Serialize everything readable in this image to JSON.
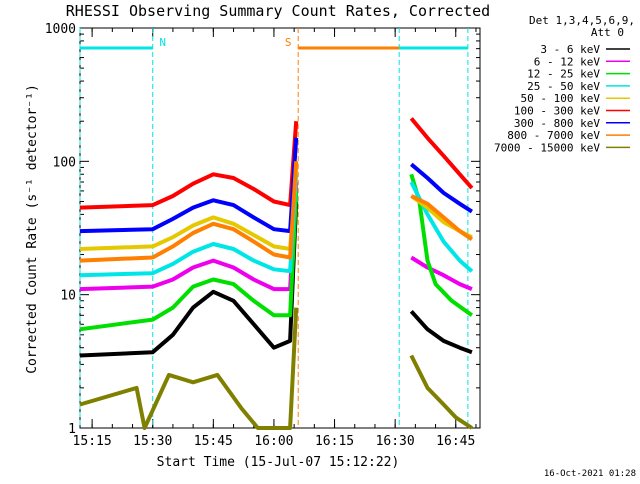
{
  "chart_data": {
    "type": "line",
    "title": "RHESSI Observing Summary Count Rates, Corrected",
    "xlabel": "Start Time (15-Jul-07 15:12:22)",
    "ylabel": "Corrected Count Rate (s⁻¹ detector⁻¹)",
    "yscale": "log",
    "ylim": [
      1,
      1000
    ],
    "xlim": [
      "15:12",
      "16:51"
    ],
    "x_ticks": [
      "15:15",
      "15:30",
      "15:45",
      "16:00",
      "16:15",
      "16:30",
      "16:45"
    ],
    "y_ticks": [
      "1",
      "10",
      "100",
      "1000"
    ],
    "footer": "16-Oct-2021 01:28",
    "legend_header": [
      "Det 1,3,4,5,6,9,",
      "Att 0"
    ],
    "legend_position": "right",
    "state_markers": [
      {
        "label": "N",
        "color": "#00e5e5",
        "bars": [
          [
            "15:12",
            "15:30"
          ],
          [
            "16:31",
            "16:48"
          ]
        ]
      },
      {
        "label": "S",
        "color": "#ff7f00",
        "bars": [
          [
            "16:06",
            "16:31"
          ]
        ]
      }
    ],
    "vertical_lines": [
      {
        "color": "#00e5e5",
        "times": [
          "15:12",
          "15:30",
          "16:31",
          "16:48"
        ]
      },
      {
        "color": "#ff7f00",
        "times": [
          "16:06"
        ]
      }
    ],
    "series": [
      {
        "name": "3 - 6 keV",
        "color": "#000000",
        "points": [
          [
            "15:12",
            3.5
          ],
          [
            "15:30",
            3.7
          ],
          [
            "15:35",
            5
          ],
          [
            "15:40",
            8
          ],
          [
            "15:45",
            10.5
          ],
          [
            "15:50",
            9
          ],
          [
            "15:55",
            6
          ],
          [
            "16:00",
            4
          ],
          [
            "16:04",
            4.5
          ],
          [
            "16:05.5",
            50
          ],
          [
            null,
            null
          ],
          [
            "16:34",
            7.5
          ],
          [
            "16:38",
            5.5
          ],
          [
            "16:42",
            4.5
          ],
          [
            "16:46",
            4
          ],
          [
            "16:49",
            3.7
          ]
        ]
      },
      {
        "name": "6 - 12 keV",
        "color": "#ee00ee",
        "points": [
          [
            "15:12",
            11
          ],
          [
            "15:30",
            11.5
          ],
          [
            "15:35",
            13
          ],
          [
            "15:40",
            16
          ],
          [
            "15:45",
            18
          ],
          [
            "15:50",
            16
          ],
          [
            "15:55",
            13
          ],
          [
            "16:00",
            11
          ],
          [
            "16:04",
            11
          ],
          [
            "16:05.5",
            70
          ],
          [
            null,
            null
          ],
          [
            "16:34",
            19
          ],
          [
            "16:38",
            16
          ],
          [
            "16:42",
            14
          ],
          [
            "16:46",
            12
          ],
          [
            "16:49",
            11
          ]
        ]
      },
      {
        "name": "12 - 25 keV",
        "color": "#00e000",
        "points": [
          [
            "15:12",
            5.5
          ],
          [
            "15:30",
            6.5
          ],
          [
            "15:35",
            8
          ],
          [
            "15:40",
            11.5
          ],
          [
            "15:45",
            13
          ],
          [
            "15:50",
            12
          ],
          [
            "15:55",
            9
          ],
          [
            "16:00",
            7
          ],
          [
            "16:04",
            7
          ],
          [
            "16:05.5",
            60
          ],
          [
            null,
            null
          ],
          [
            "16:34",
            80
          ],
          [
            "16:36",
            50
          ],
          [
            "16:38",
            18
          ],
          [
            "16:40",
            12
          ],
          [
            "16:44",
            9
          ],
          [
            "16:49",
            7
          ]
        ]
      },
      {
        "name": "25 - 50 keV",
        "color": "#00e5e5",
        "points": [
          [
            "15:12",
            14
          ],
          [
            "15:30",
            14.5
          ],
          [
            "15:35",
            17
          ],
          [
            "15:40",
            21
          ],
          [
            "15:45",
            24
          ],
          [
            "15:50",
            22
          ],
          [
            "15:55",
            18
          ],
          [
            "16:00",
            15.5
          ],
          [
            "16:04",
            15
          ],
          [
            "16:05.5",
            80
          ],
          [
            null,
            null
          ],
          [
            "16:34",
            70
          ],
          [
            "16:38",
            40
          ],
          [
            "16:42",
            25
          ],
          [
            "16:46",
            18
          ],
          [
            "16:49",
            15
          ]
        ]
      },
      {
        "name": "50 - 100 keV",
        "color": "#e5c800",
        "points": [
          [
            "15:12",
            22
          ],
          [
            "15:30",
            23
          ],
          [
            "15:35",
            27
          ],
          [
            "15:40",
            33
          ],
          [
            "15:45",
            38
          ],
          [
            "15:50",
            34
          ],
          [
            "15:55",
            28
          ],
          [
            "16:00",
            23
          ],
          [
            "16:04",
            22
          ],
          [
            "16:05.5",
            90
          ],
          [
            null,
            null
          ],
          [
            "16:34",
            55
          ],
          [
            "16:38",
            45
          ],
          [
            "16:42",
            35
          ],
          [
            "16:46",
            30
          ],
          [
            "16:49",
            27
          ]
        ]
      },
      {
        "name": "100 - 300 keV",
        "color": "#ff0000",
        "points": [
          [
            "15:12",
            45
          ],
          [
            "15:30",
            47
          ],
          [
            "15:35",
            55
          ],
          [
            "15:40",
            68
          ],
          [
            "15:45",
            80
          ],
          [
            "15:50",
            75
          ],
          [
            "15:55",
            62
          ],
          [
            "16:00",
            50
          ],
          [
            "16:04",
            47
          ],
          [
            "16:05.5",
            200
          ],
          [
            null,
            null
          ],
          [
            "16:34",
            210
          ],
          [
            "16:38",
            150
          ],
          [
            "16:42",
            110
          ],
          [
            "16:46",
            80
          ],
          [
            "16:49",
            63
          ]
        ]
      },
      {
        "name": "300 - 800 keV",
        "color": "#0000ff",
        "points": [
          [
            "15:12",
            30
          ],
          [
            "15:30",
            31
          ],
          [
            "15:35",
            37
          ],
          [
            "15:40",
            45
          ],
          [
            "15:45",
            51
          ],
          [
            "15:50",
            47
          ],
          [
            "15:55",
            38
          ],
          [
            "16:00",
            31
          ],
          [
            "16:04",
            30
          ],
          [
            "16:05.5",
            150
          ],
          [
            null,
            null
          ],
          [
            "16:34",
            95
          ],
          [
            "16:38",
            75
          ],
          [
            "16:42",
            58
          ],
          [
            "16:46",
            48
          ],
          [
            "16:49",
            42
          ]
        ]
      },
      {
        "name": "800 - 7000 keV",
        "color": "#ff7f00",
        "points": [
          [
            "15:12",
            18
          ],
          [
            "15:30",
            19
          ],
          [
            "15:35",
            23
          ],
          [
            "15:40",
            29
          ],
          [
            "15:45",
            34
          ],
          [
            "15:50",
            31
          ],
          [
            "15:55",
            25
          ],
          [
            "16:00",
            20
          ],
          [
            "16:04",
            19
          ],
          [
            "16:05.5",
            100
          ],
          [
            null,
            null
          ],
          [
            "16:34",
            55
          ],
          [
            "16:38",
            48
          ],
          [
            "16:42",
            38
          ],
          [
            "16:46",
            30
          ],
          [
            "16:49",
            26
          ]
        ]
      },
      {
        "name": "7000 - 15000 keV",
        "color": "#808000",
        "points": [
          [
            "15:12",
            1.5
          ],
          [
            "15:26",
            2
          ],
          [
            "15:28",
            1
          ],
          [
            "15:34",
            2.5
          ],
          [
            "15:40",
            2.2
          ],
          [
            "15:46",
            2.5
          ],
          [
            "15:52",
            1.4
          ],
          [
            "15:56",
            1
          ],
          [
            "16:00",
            1
          ],
          [
            "16:04",
            1
          ],
          [
            "16:05.5",
            8
          ],
          [
            null,
            null
          ],
          [
            "16:34",
            3.5
          ],
          [
            "16:38",
            2
          ],
          [
            "16:42",
            1.5
          ],
          [
            "16:45",
            1.2
          ],
          [
            "16:49",
            1
          ]
        ]
      }
    ]
  }
}
